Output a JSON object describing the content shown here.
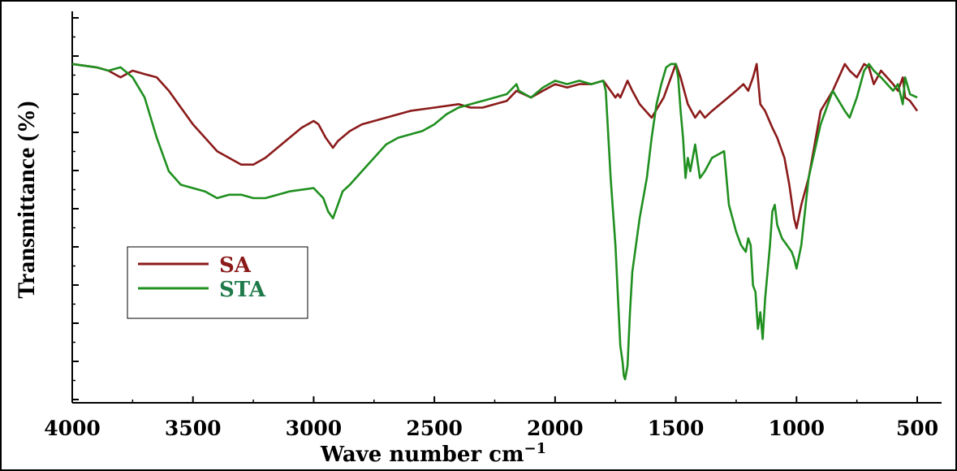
{
  "chart_data": {
    "type": "line",
    "title": "",
    "xlabel": "Wave number cm",
    "xlabel_sup": "−1",
    "ylabel": "Transmittance (%)",
    "xlim": [
      4000,
      500
    ],
    "ylim": [
      0,
      100
    ],
    "x_reversed": true,
    "x_ticks": [
      4000,
      3500,
      3000,
      2500,
      2000,
      1500,
      1000,
      500
    ],
    "x_tick_labels": [
      "4000",
      "3500",
      "3000",
      "2500",
      "2000",
      "1500",
      "1000",
      "500"
    ],
    "legend_position": "middle-left",
    "grid": false,
    "series": [
      {
        "name": "SA",
        "color": "#8b1a1a",
        "x": [
          4000,
          3900,
          3850,
          3800,
          3750,
          3700,
          3650,
          3600,
          3500,
          3400,
          3300,
          3250,
          3200,
          3100,
          3050,
          3000,
          2980,
          2950,
          2920,
          2900,
          2850,
          2800,
          2700,
          2600,
          2500,
          2400,
          2350,
          2300,
          2200,
          2160,
          2100,
          2050,
          2000,
          1950,
          1900,
          1850,
          1800,
          1780,
          1750,
          1740,
          1730,
          1700,
          1680,
          1650,
          1600,
          1550,
          1500,
          1480,
          1450,
          1420,
          1400,
          1380,
          1350,
          1300,
          1250,
          1220,
          1200,
          1180,
          1165,
          1150,
          1130,
          1100,
          1080,
          1050,
          1030,
          1010,
          1000,
          980,
          950,
          900,
          850,
          800,
          780,
          750,
          720,
          700,
          680,
          650,
          600,
          580,
          560,
          550,
          530,
          500
        ],
        "y": [
          94,
          93,
          92,
          90,
          92,
          91,
          90,
          86,
          76,
          68,
          64,
          64,
          66,
          72,
          75,
          77,
          76,
          72,
          69,
          71,
          74,
          76,
          78,
          80,
          81,
          82,
          81,
          81,
          83,
          86,
          84,
          86,
          88,
          87,
          88,
          88,
          89,
          87,
          84,
          85,
          84,
          89,
          86,
          82,
          78,
          84,
          94,
          90,
          82,
          78,
          80,
          78,
          80,
          83,
          86,
          88,
          86,
          90,
          94,
          82,
          80,
          75,
          72,
          66,
          58,
          48,
          45,
          52,
          60,
          80,
          86,
          94,
          92,
          90,
          94,
          93,
          88,
          92,
          88,
          86,
          90,
          84,
          83,
          80
        ]
      },
      {
        "name": "STA",
        "color": "#1f8f1f",
        "x": [
          4000,
          3900,
          3850,
          3800,
          3750,
          3700,
          3650,
          3600,
          3550,
          3500,
          3450,
          3400,
          3350,
          3300,
          3250,
          3200,
          3100,
          3000,
          2960,
          2940,
          2920,
          2900,
          2880,
          2850,
          2800,
          2750,
          2700,
          2650,
          2600,
          2550,
          2500,
          2450,
          2400,
          2350,
          2300,
          2250,
          2200,
          2160,
          2150,
          2100,
          2050,
          2000,
          1950,
          1900,
          1850,
          1800,
          1790,
          1770,
          1750,
          1740,
          1730,
          1720,
          1715,
          1710,
          1700,
          1690,
          1680,
          1650,
          1620,
          1600,
          1580,
          1560,
          1540,
          1520,
          1500,
          1490,
          1480,
          1470,
          1460,
          1450,
          1440,
          1420,
          1400,
          1380,
          1350,
          1300,
          1280,
          1250,
          1230,
          1210,
          1200,
          1190,
          1180,
          1170,
          1160,
          1150,
          1140,
          1130,
          1110,
          1100,
          1090,
          1080,
          1060,
          1040,
          1020,
          1010,
          1000,
          980,
          950,
          900,
          850,
          800,
          780,
          750,
          720,
          700,
          680,
          650,
          600,
          580,
          560,
          550,
          530,
          500
        ],
        "y": [
          94,
          93,
          92,
          93,
          90,
          84,
          72,
          62,
          58,
          57,
          56,
          54,
          55,
          55,
          54,
          54,
          56,
          57,
          54,
          50,
          48,
          52,
          56,
          58,
          62,
          66,
          70,
          72,
          73,
          74,
          76,
          79,
          81,
          82,
          83,
          84,
          85,
          88,
          86,
          84,
          87,
          89,
          88,
          89,
          88,
          89,
          86,
          60,
          40,
          25,
          10,
          5,
          1,
          0,
          4,
          20,
          32,
          48,
          60,
          72,
          82,
          88,
          93,
          94,
          94,
          90,
          80,
          72,
          60,
          66,
          62,
          70,
          60,
          62,
          66,
          68,
          52,
          44,
          40,
          38,
          42,
          40,
          28,
          26,
          15,
          20,
          12,
          24,
          40,
          50,
          52,
          46,
          42,
          40,
          38,
          36,
          33,
          40,
          60,
          76,
          86,
          80,
          78,
          84,
          92,
          94,
          92,
          90,
          86,
          88,
          82,
          90,
          85,
          84
        ]
      }
    ]
  },
  "legend": {
    "items": [
      {
        "label": "SA",
        "color": "#8b1a1a"
      },
      {
        "label": "STA",
        "color": "#1f8f1f"
      }
    ]
  }
}
